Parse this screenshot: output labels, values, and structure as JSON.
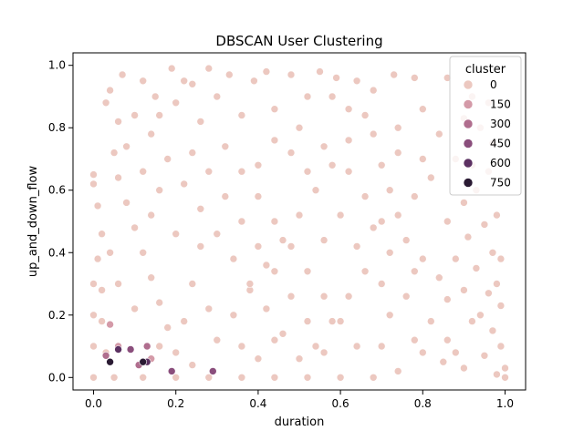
{
  "chart_data": {
    "type": "scatter",
    "title": "DBSCAN User Clustering",
    "xlabel": "duration",
    "ylabel": "up_and_down_flow",
    "xlim": [
      -0.05,
      1.05
    ],
    "ylim": [
      -0.04,
      1.04
    ],
    "x_ticks": [
      0.0,
      0.2,
      0.4,
      0.6,
      0.8,
      1.0
    ],
    "x_tick_labels": [
      "0.0",
      "0.2",
      "0.4",
      "0.6",
      "0.8",
      "1.0"
    ],
    "y_ticks": [
      0.0,
      0.2,
      0.4,
      0.6,
      0.8,
      1.0
    ],
    "y_tick_labels": [
      "0.0",
      "0.2",
      "0.4",
      "0.6",
      "0.8",
      "1.0"
    ],
    "grid": false,
    "legend": {
      "title": "cluster",
      "placement": "top-right",
      "entries": [
        {
          "label": "0",
          "color": "#ecc8c0"
        },
        {
          "label": "150",
          "color": "#d49aa8"
        },
        {
          "label": "300",
          "color": "#b06e8e"
        },
        {
          "label": "450",
          "color": "#8a4e7c"
        },
        {
          "label": "600",
          "color": "#5c3162"
        },
        {
          "label": "750",
          "color": "#2a1a33"
        }
      ]
    },
    "series": [
      {
        "name": "0",
        "color": "#ecc8c0",
        "points": [
          [
            0.0,
            0.65
          ],
          [
            0.0,
            0.62
          ],
          [
            0.01,
            0.55
          ],
          [
            0.02,
            0.46
          ],
          [
            0.03,
            0.88
          ],
          [
            0.04,
            0.92
          ],
          [
            0.07,
            0.97
          ],
          [
            0.12,
            0.95
          ],
          [
            0.15,
            0.9
          ],
          [
            0.19,
            0.99
          ],
          [
            0.22,
            0.95
          ],
          [
            0.28,
            0.99
          ],
          [
            0.33,
            0.97
          ],
          [
            0.39,
            0.95
          ],
          [
            0.42,
            0.98
          ],
          [
            0.48,
            0.97
          ],
          [
            0.55,
            0.98
          ],
          [
            0.59,
            0.96
          ],
          [
            0.64,
            0.95
          ],
          [
            0.68,
            0.92
          ],
          [
            0.73,
            0.97
          ],
          [
            0.78,
            0.96
          ],
          [
            0.86,
            0.96
          ],
          [
            0.92,
            0.9
          ],
          [
            0.96,
            0.88
          ],
          [
            0.9,
            0.83
          ],
          [
            0.94,
            0.8
          ],
          [
            0.97,
            0.75
          ],
          [
            0.88,
            0.7
          ],
          [
            0.96,
            0.66
          ],
          [
            0.93,
            0.6
          ],
          [
            0.98,
            0.52
          ],
          [
            0.95,
            0.49
          ],
          [
            0.91,
            0.45
          ],
          [
            0.97,
            0.4
          ],
          [
            0.99,
            0.38
          ],
          [
            0.93,
            0.35
          ],
          [
            0.98,
            0.3
          ],
          [
            0.96,
            0.27
          ],
          [
            0.99,
            0.23
          ],
          [
            0.94,
            0.2
          ],
          [
            0.97,
            0.15
          ],
          [
            0.99,
            0.1
          ],
          [
            0.95,
            0.07
          ],
          [
            1.0,
            0.03
          ],
          [
            1.0,
            0.0
          ],
          [
            0.98,
            0.01
          ],
          [
            0.9,
            0.03
          ],
          [
            0.85,
            0.05
          ],
          [
            0.8,
            0.08
          ],
          [
            0.78,
            0.12
          ],
          [
            0.82,
            0.18
          ],
          [
            0.86,
            0.25
          ],
          [
            0.84,
            0.32
          ],
          [
            0.8,
            0.38
          ],
          [
            0.76,
            0.44
          ],
          [
            0.74,
            0.52
          ],
          [
            0.78,
            0.58
          ],
          [
            0.82,
            0.64
          ],
          [
            0.8,
            0.7
          ],
          [
            0.84,
            0.78
          ],
          [
            0.8,
            0.86
          ],
          [
            0.74,
            0.8
          ],
          [
            0.7,
            0.68
          ],
          [
            0.72,
            0.6
          ],
          [
            0.7,
            0.5
          ],
          [
            0.72,
            0.4
          ],
          [
            0.7,
            0.3
          ],
          [
            0.72,
            0.2
          ],
          [
            0.7,
            0.1
          ],
          [
            0.74,
            0.02
          ],
          [
            0.68,
            0.0
          ],
          [
            0.6,
            0.0
          ],
          [
            0.52,
            0.0
          ],
          [
            0.44,
            0.0
          ],
          [
            0.36,
            0.0
          ],
          [
            0.28,
            0.0
          ],
          [
            0.2,
            0.0
          ],
          [
            0.12,
            0.0
          ],
          [
            0.05,
            0.0
          ],
          [
            0.0,
            0.0
          ],
          [
            0.0,
            0.1
          ],
          [
            0.0,
            0.2
          ],
          [
            0.0,
            0.3
          ],
          [
            0.01,
            0.38
          ],
          [
            0.02,
            0.28
          ],
          [
            0.02,
            0.18
          ],
          [
            0.03,
            0.08
          ],
          [
            0.05,
            0.72
          ],
          [
            0.06,
            0.64
          ],
          [
            0.08,
            0.56
          ],
          [
            0.1,
            0.48
          ],
          [
            0.12,
            0.4
          ],
          [
            0.14,
            0.32
          ],
          [
            0.16,
            0.24
          ],
          [
            0.18,
            0.16
          ],
          [
            0.2,
            0.08
          ],
          [
            0.24,
            0.04
          ],
          [
            0.3,
            0.12
          ],
          [
            0.34,
            0.2
          ],
          [
            0.38,
            0.28
          ],
          [
            0.42,
            0.36
          ],
          [
            0.46,
            0.44
          ],
          [
            0.5,
            0.52
          ],
          [
            0.54,
            0.6
          ],
          [
            0.58,
            0.68
          ],
          [
            0.62,
            0.76
          ],
          [
            0.66,
            0.84
          ],
          [
            0.1,
            0.84
          ],
          [
            0.14,
            0.78
          ],
          [
            0.18,
            0.7
          ],
          [
            0.22,
            0.62
          ],
          [
            0.26,
            0.54
          ],
          [
            0.3,
            0.46
          ],
          [
            0.34,
            0.38
          ],
          [
            0.38,
            0.3
          ],
          [
            0.42,
            0.22
          ],
          [
            0.46,
            0.14
          ],
          [
            0.5,
            0.06
          ],
          [
            0.54,
            0.1
          ],
          [
            0.58,
            0.18
          ],
          [
            0.62,
            0.26
          ],
          [
            0.66,
            0.34
          ],
          [
            0.2,
            0.88
          ],
          [
            0.26,
            0.82
          ],
          [
            0.32,
            0.74
          ],
          [
            0.36,
            0.66
          ],
          [
            0.4,
            0.58
          ],
          [
            0.44,
            0.5
          ],
          [
            0.48,
            0.42
          ],
          [
            0.52,
            0.34
          ],
          [
            0.56,
            0.26
          ],
          [
            0.6,
            0.18
          ],
          [
            0.64,
            0.1
          ],
          [
            0.3,
            0.9
          ],
          [
            0.36,
            0.84
          ],
          [
            0.44,
            0.86
          ],
          [
            0.5,
            0.8
          ],
          [
            0.56,
            0.74
          ],
          [
            0.62,
            0.66
          ],
          [
            0.66,
            0.58
          ],
          [
            0.68,
            0.48
          ],
          [
            0.64,
            0.42
          ],
          [
            0.6,
            0.52
          ],
          [
            0.56,
            0.44
          ],
          [
            0.52,
            0.66
          ],
          [
            0.48,
            0.72
          ],
          [
            0.44,
            0.76
          ],
          [
            0.4,
            0.68
          ],
          [
            0.28,
            0.66
          ],
          [
            0.24,
            0.72
          ],
          [
            0.16,
            0.6
          ],
          [
            0.12,
            0.66
          ],
          [
            0.08,
            0.74
          ],
          [
            0.06,
            0.82
          ],
          [
            0.1,
            0.22
          ],
          [
            0.06,
            0.3
          ],
          [
            0.04,
            0.4
          ],
          [
            0.24,
            0.3
          ],
          [
            0.28,
            0.22
          ],
          [
            0.32,
            0.58
          ],
          [
            0.36,
            0.5
          ],
          [
            0.4,
            0.42
          ],
          [
            0.44,
            0.34
          ],
          [
            0.48,
            0.26
          ],
          [
            0.52,
            0.18
          ],
          [
            0.56,
            0.08
          ],
          [
            0.36,
            0.1
          ],
          [
            0.4,
            0.06
          ],
          [
            0.44,
            0.12
          ],
          [
            0.16,
            0.1
          ],
          [
            0.22,
            0.18
          ],
          [
            0.26,
            0.42
          ],
          [
            0.2,
            0.46
          ],
          [
            0.14,
            0.52
          ],
          [
            0.86,
            0.12
          ],
          [
            0.88,
            0.08
          ],
          [
            0.92,
            0.18
          ],
          [
            0.9,
            0.28
          ],
          [
            0.88,
            0.38
          ],
          [
            0.86,
            0.5
          ],
          [
            0.9,
            0.56
          ],
          [
            0.92,
            0.68
          ],
          [
            0.76,
            0.26
          ],
          [
            0.78,
            0.34
          ],
          [
            0.74,
            0.72
          ],
          [
            0.68,
            0.78
          ],
          [
            0.62,
            0.86
          ],
          [
            0.58,
            0.9
          ],
          [
            0.52,
            0.9
          ],
          [
            0.24,
            0.94
          ],
          [
            0.16,
            0.84
          ]
        ]
      },
      {
        "name": "150",
        "color": "#d49aa8",
        "points": [
          [
            0.04,
            0.17
          ],
          [
            0.06,
            0.1
          ],
          [
            0.14,
            0.06
          ]
        ]
      },
      {
        "name": "300",
        "color": "#b06e8e",
        "points": [
          [
            0.03,
            0.07
          ],
          [
            0.11,
            0.04
          ],
          [
            0.13,
            0.1
          ]
        ]
      },
      {
        "name": "450",
        "color": "#8a4e7c",
        "points": [
          [
            0.09,
            0.09
          ],
          [
            0.29,
            0.02
          ],
          [
            0.19,
            0.02
          ]
        ]
      },
      {
        "name": "600",
        "color": "#5c3162",
        "points": [
          [
            0.06,
            0.09
          ],
          [
            0.13,
            0.05
          ]
        ]
      },
      {
        "name": "750",
        "color": "#2a1a33",
        "points": [
          [
            0.04,
            0.05
          ],
          [
            0.12,
            0.05
          ]
        ]
      }
    ]
  }
}
